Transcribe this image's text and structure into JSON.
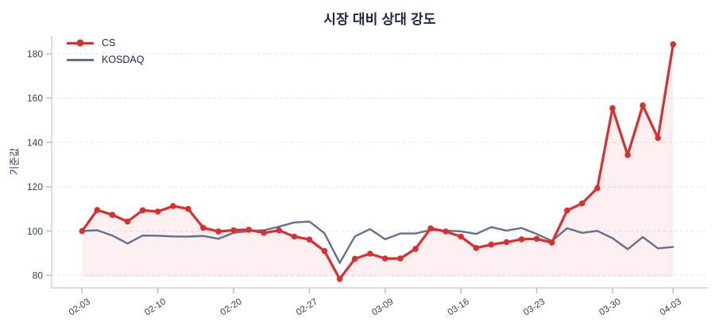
{
  "title": "시장 대비 상대 강도",
  "y_axis_label": "기준값",
  "legend": [
    {
      "label": "CS"
    },
    {
      "label": "KOSDAQ"
    }
  ],
  "colors": {
    "cs_red": "#dc2e2e",
    "kosdaq_slate": "#61718e",
    "grid": "#e4e7ec",
    "axis_line": "#ccd2da",
    "tick_mark": "#b6bfca",
    "tick_label": "#33415e",
    "title_text": "#1c2642",
    "fill_pink_opacity": "0.08"
  },
  "chart_data": {
    "type": "line",
    "title": "시장 대비 상대 강도",
    "ylabel": "기준값",
    "xlabel": "",
    "grid": "horizontal-dashed",
    "legend_position": "top-left",
    "ylim": [
      74,
      188
    ],
    "y_ticks": [
      80,
      100,
      120,
      140,
      160,
      180
    ],
    "x_tick_indices": [
      0,
      5,
      10,
      15,
      20,
      25,
      30,
      35,
      39
    ],
    "x_tick_labels": [
      "02-03",
      "02-10",
      "02-20",
      "02-27",
      "03-09",
      "03-16",
      "03-23",
      "03-30",
      "04-03"
    ],
    "x_is_trading_days": true,
    "n_points": 40,
    "fill_to": 79.5,
    "series": [
      {
        "name": "CS",
        "color": "#dc2e2e",
        "marker": true,
        "fill": true,
        "line_width": 3.2,
        "values": [
          100,
          109.5,
          107.3,
          104.3,
          109.4,
          108.8,
          111.3,
          110.0,
          101.5,
          99.8,
          100.4,
          100.6,
          99.2,
          100.3,
          97.5,
          96.2,
          91.0,
          78.4,
          87.5,
          89.8,
          87.6,
          87.6,
          92.0,
          101.2,
          99.8,
          97.5,
          92.4,
          93.9,
          95.0,
          96.3,
          96.5,
          94.8,
          109.3,
          112.5,
          119.4,
          155.5,
          134.3,
          156.7,
          142.0,
          184.3
        ]
      },
      {
        "name": "KOSDAQ",
        "color": "#61718e",
        "marker": false,
        "fill": false,
        "line_width": 2.4,
        "values": [
          100,
          100.4,
          98.0,
          94.4,
          98.0,
          97.9,
          97.6,
          97.5,
          97.8,
          96.5,
          99.2,
          100.0,
          100.4,
          102.0,
          103.9,
          104.3,
          99.0,
          85.6,
          97.6,
          100.9,
          96.3,
          98.9,
          98.9,
          100.5,
          100.2,
          99.9,
          98.7,
          101.8,
          100.2,
          101.4,
          98.7,
          95.5,
          101.3,
          99.2,
          100.1,
          96.8,
          91.8,
          97.3,
          92.2,
          92.8
        ]
      }
    ]
  }
}
